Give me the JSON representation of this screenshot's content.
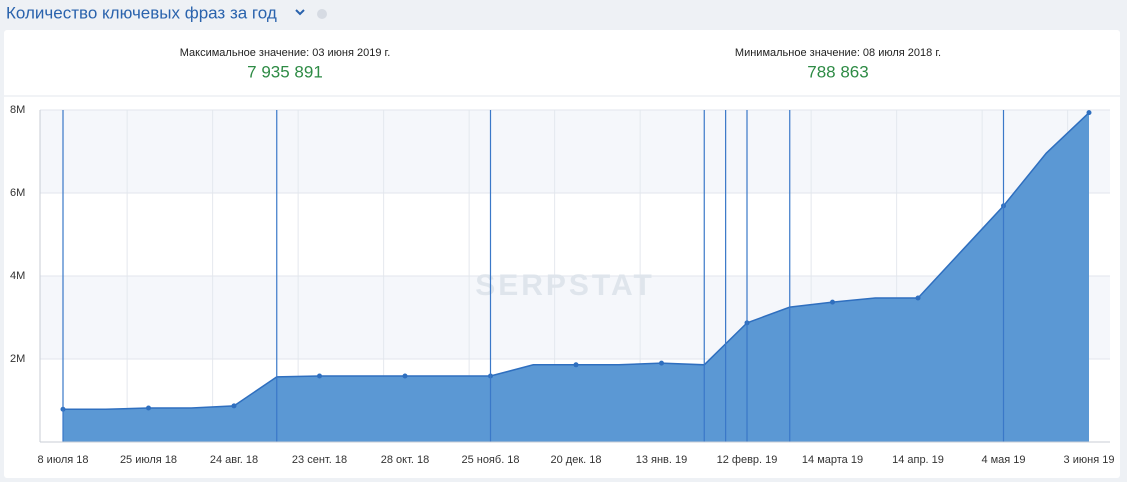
{
  "header": {
    "title": "Количество ключевых фраз за год"
  },
  "stats": [
    {
      "caption": "Максимальное значение: 03 июня 2019 г.",
      "value": "7 935 891"
    },
    {
      "caption": "Минимальное значение: 08 июля 2018 г.",
      "value": "788 863"
    }
  ],
  "chart_data": {
    "type": "area",
    "watermark": "SERPSTAT",
    "categories": [
      "8 июля 18",
      null,
      "25 июля 18",
      null,
      "24 авг. 18",
      null,
      "23 сент. 18",
      null,
      "28 окт. 18",
      null,
      "25 нояб. 18",
      null,
      "20 дек. 18",
      null,
      "13 янв. 19",
      null,
      "12 февр. 19",
      null,
      "14 марта 19",
      null,
      "14 апр. 19",
      null,
      "4 мая 19",
      null,
      "3 июня 19"
    ],
    "series": [
      {
        "name": "Ключевые фразы",
        "color": "#5b98d4",
        "values": [
          788863,
          790000,
          820000,
          820000,
          870000,
          1570000,
          1590000,
          1590000,
          1590000,
          1590000,
          1590000,
          1860000,
          1860000,
          1860000,
          1900000,
          1860000,
          2870000,
          3250000,
          3370000,
          3470000,
          3470000,
          4580000,
          5690000,
          6960000,
          7935891
        ]
      }
    ],
    "event_x": [
      0,
      5,
      10,
      15,
      15.5,
      16,
      17,
      22
    ],
    "ylim": [
      0,
      8000000
    ],
    "yticks": [
      {
        "value": 2000000,
        "label": "2M"
      },
      {
        "value": 4000000,
        "label": "4M"
      },
      {
        "value": 6000000,
        "label": "6M"
      },
      {
        "value": 8000000,
        "label": "8M"
      }
    ],
    "grid": true
  }
}
